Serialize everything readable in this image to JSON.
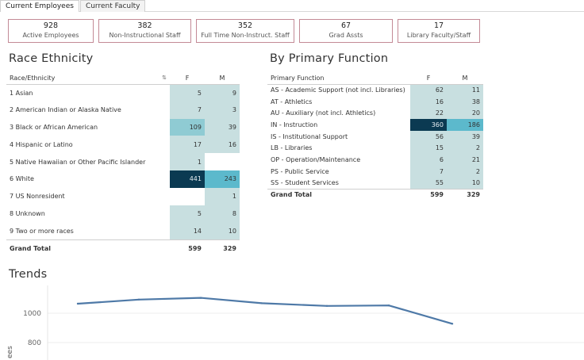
{
  "tabs": [
    {
      "label": "Current Employees",
      "active": true
    },
    {
      "label": "Current Faculty",
      "active": false
    }
  ],
  "kpis": [
    {
      "value": "928",
      "label": "Active Employees"
    },
    {
      "value": "382",
      "label": "Non-Instructional Staff"
    },
    {
      "value": "352",
      "label": "Full Time Non-Instruct. Staff"
    },
    {
      "value": "67",
      "label": "Grad Assts"
    },
    {
      "value": "17",
      "label": "Library Faculty/Staff"
    }
  ],
  "race": {
    "title": "Race Ethnicity",
    "col_label": "Race/Ethnicity",
    "col_f": "F",
    "col_m": "M",
    "rows": [
      {
        "label": "1 Asian",
        "f": "5",
        "m": "9"
      },
      {
        "label": "2 American Indian or Alaska Native",
        "f": "7",
        "m": "3"
      },
      {
        "label": "3 Black or African American",
        "f": "109",
        "m": "39"
      },
      {
        "label": "4 Hispanic or Latino",
        "f": "17",
        "m": "16"
      },
      {
        "label": "5 Native Hawaiian or Other Pacific Islander",
        "f": "1",
        "m": ""
      },
      {
        "label": "6 White",
        "f": "441",
        "m": "243"
      },
      {
        "label": "7 US Nonresident",
        "f": "",
        "m": "1"
      },
      {
        "label": "8 Unknown",
        "f": "5",
        "m": "8"
      },
      {
        "label": "9 Two or more races",
        "f": "14",
        "m": "10"
      }
    ],
    "total": {
      "label": "Grand Total",
      "f": "599",
      "m": "329"
    }
  },
  "function": {
    "title": "By Primary Function",
    "col_label": "Primary Function",
    "col_f": "F",
    "col_m": "M",
    "rows": [
      {
        "label": "AS - Academic Support (not incl. Libraries)",
        "f": "62",
        "m": "11"
      },
      {
        "label": "AT - Athletics",
        "f": "16",
        "m": "38"
      },
      {
        "label": "AU - Auxiliary (not incl. Athletics)",
        "f": "22",
        "m": "20"
      },
      {
        "label": "IN - Instruction",
        "f": "360",
        "m": "186"
      },
      {
        "label": "IS - Institutional Support",
        "f": "56",
        "m": "39"
      },
      {
        "label": "LB - Libraries",
        "f": "15",
        "m": "2"
      },
      {
        "label": "OP - Operation/Maintenance",
        "f": "6",
        "m": "21"
      },
      {
        "label": "PS - Public Service",
        "f": "7",
        "m": "2"
      },
      {
        "label": "SS - Student Services",
        "f": "55",
        "m": "10"
      }
    ],
    "total": {
      "label": "Grand Total",
      "f": "599",
      "m": "329"
    }
  },
  "colors": {
    "kpi_border": "#c38a96",
    "heat_low": "#c8dfe0",
    "heat_mid": "#8fcbd3",
    "heat_high": "#5cb9cc",
    "heat_max": "#0b3a52",
    "line": "#4e79a7"
  },
  "chart_data": {
    "type": "line",
    "title": "Trends",
    "ylabel": "ees",
    "ticks": [
      800,
      1000
    ],
    "ylim": [
      750,
      1140
    ],
    "x": [
      1,
      2,
      3,
      4,
      5,
      6,
      7
    ],
    "values": [
      1065,
      1093,
      1105,
      1068,
      1050,
      1053,
      928
    ]
  }
}
